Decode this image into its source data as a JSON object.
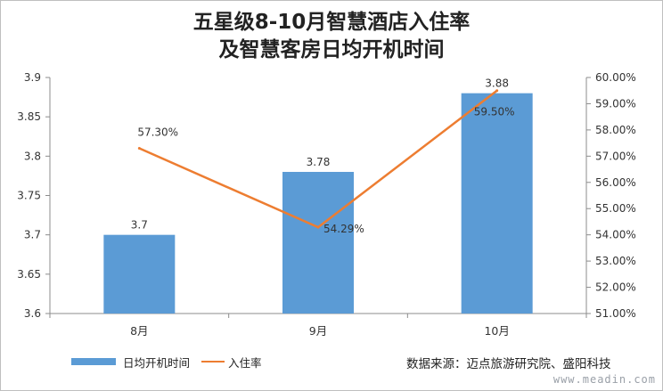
{
  "title_line1": "五星级8-10月智慧酒店入住率",
  "title_line2": "及智慧客房日均开机时间",
  "chart_data": {
    "type": "bar",
    "categories": [
      "8月",
      "9月",
      "10月"
    ],
    "series": [
      {
        "name": "日均开机时间",
        "type": "bar",
        "axis": "left",
        "color": "#5b9bd5",
        "values": [
          3.7,
          3.78,
          3.88
        ],
        "labels": [
          "3.7",
          "3.78",
          "3.88"
        ]
      },
      {
        "name": "入住率",
        "type": "line",
        "axis": "right",
        "color": "#ed7d31",
        "values": [
          57.3,
          54.29,
          59.5
        ],
        "labels": [
          "57.30%",
          "54.29%",
          "59.50%"
        ]
      }
    ],
    "y_left": {
      "min": 3.6,
      "max": 3.9,
      "step": 0.05,
      "ticks": [
        "3.6",
        "3.65",
        "3.7",
        "3.75",
        "3.8",
        "3.85",
        "3.9"
      ]
    },
    "y_right": {
      "min": 51,
      "max": 60,
      "step": 1,
      "ticks": [
        "51.00%",
        "52.00%",
        "53.00%",
        "54.00%",
        "55.00%",
        "56.00%",
        "57.00%",
        "58.00%",
        "59.00%",
        "60.00%"
      ]
    },
    "grid": false,
    "legend_position": "bottom-left"
  },
  "source": "数据来源：迈点旅游研究院、盛阳科技",
  "watermark": "www.meadin.com"
}
